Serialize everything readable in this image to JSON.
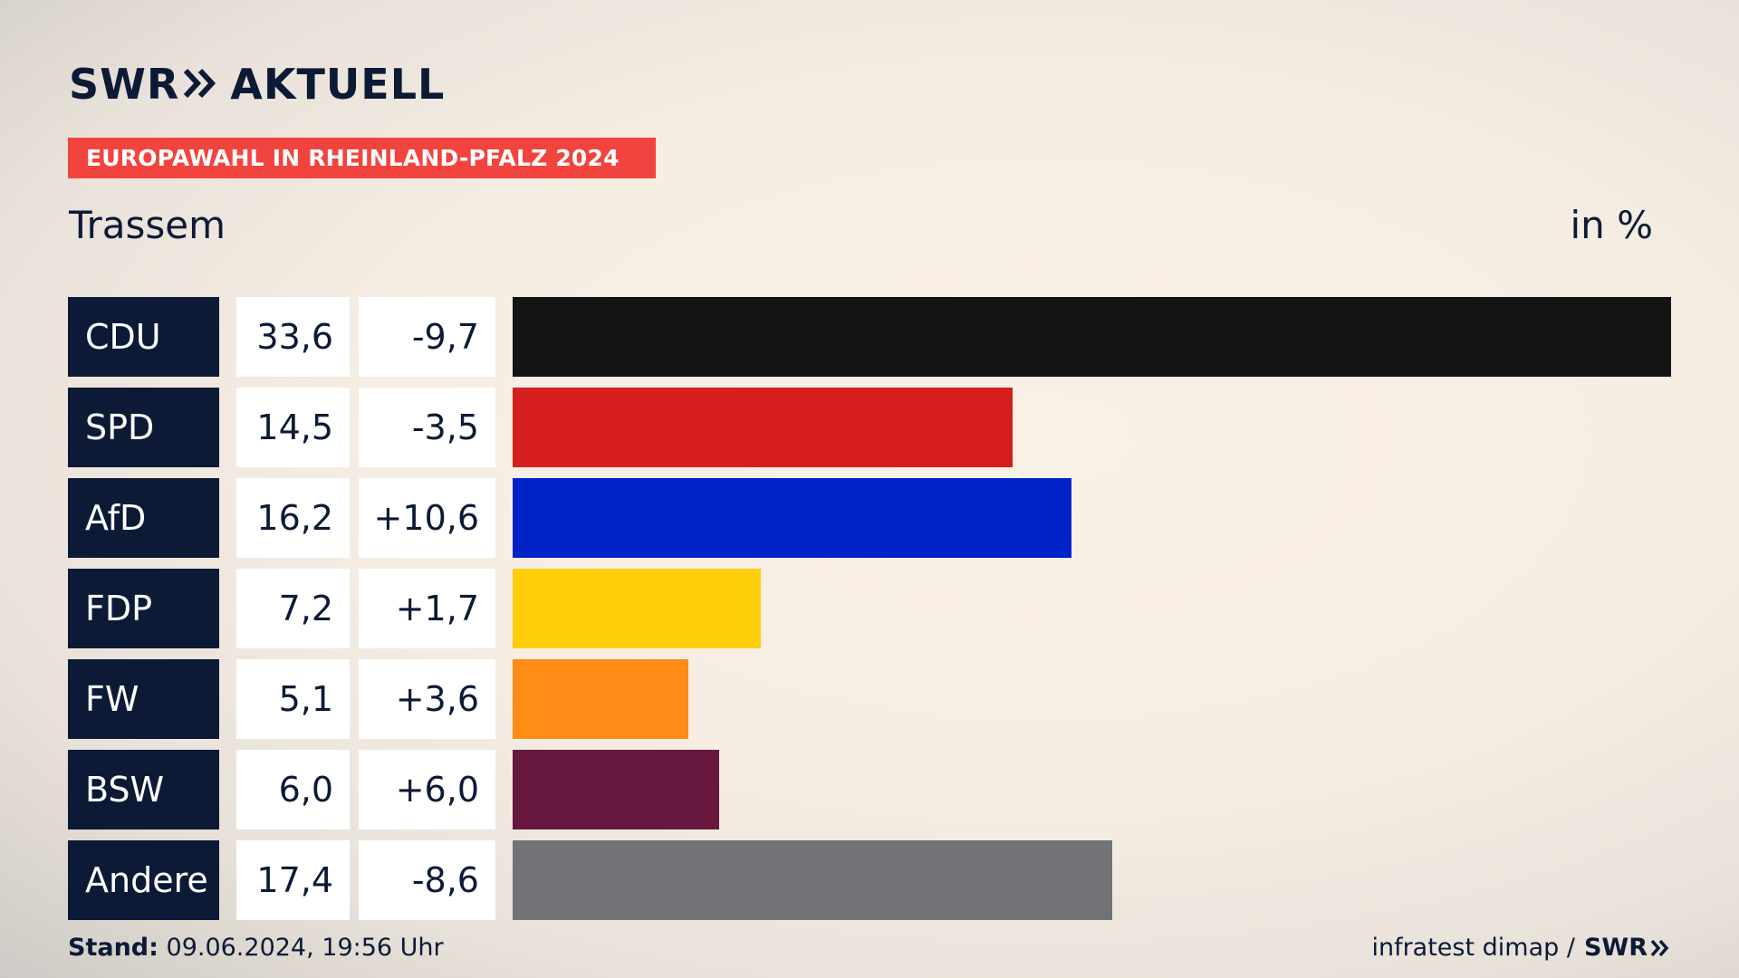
{
  "header": {
    "logo_left": "SWR",
    "logo_right": "AKTUELL",
    "banner": "EUROPAWAHL IN RHEINLAND-PFALZ 2024",
    "region": "Trassem",
    "unit": "in %"
  },
  "footer": {
    "stand_label": "Stand:",
    "stand_value": "09.06.2024, 19:56 Uhr",
    "source": "infratest dimap /",
    "source_logo": "SWR"
  },
  "colors": {
    "navy": "#0c1a36",
    "banner": "#f2443e"
  },
  "chart_data": {
    "type": "bar",
    "orientation": "horizontal",
    "categories": [
      "CDU",
      "SPD",
      "AfD",
      "FDP",
      "FW",
      "BSW",
      "Andere"
    ],
    "values": [
      33.6,
      14.5,
      16.2,
      7.2,
      5.1,
      6.0,
      17.4
    ],
    "value_labels": [
      "33,6",
      "14,5",
      "16,2",
      "7,2",
      "5,1",
      "6,0",
      "17,4"
    ],
    "diff_labels": [
      "-9,7",
      "-3,5",
      "+10,6",
      "+1,7",
      "+3,6",
      "+6,0",
      "-8,6"
    ],
    "colors": [
      "#141414",
      "#d61e1e",
      "#0023c8",
      "#ffcd0a",
      "#ff8c14",
      "#66183e",
      "#727376"
    ],
    "xlim": [
      0,
      33.6
    ],
    "grid": false,
    "legend": "none"
  }
}
